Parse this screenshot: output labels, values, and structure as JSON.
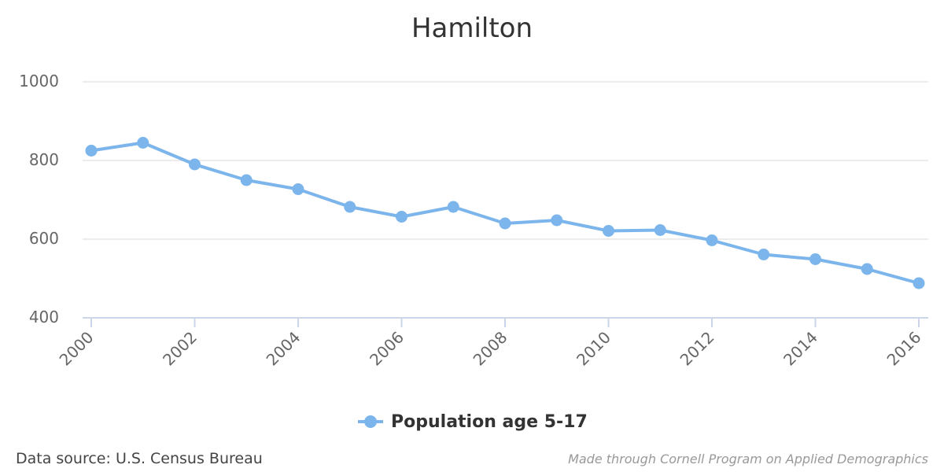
{
  "chart_data": {
    "type": "line",
    "title": "Hamilton",
    "xlabel": "",
    "ylabel": "",
    "x": [
      2000,
      2001,
      2002,
      2003,
      2004,
      2005,
      2006,
      2007,
      2008,
      2009,
      2010,
      2011,
      2012,
      2013,
      2014,
      2015,
      2016
    ],
    "series": [
      {
        "name": "Population age 5-17",
        "values": [
          825,
          845,
          790,
          750,
          727,
          682,
          657,
          682,
          640,
          648,
          621,
          623,
          597,
          561,
          549,
          524,
          488
        ]
      }
    ],
    "ylim": [
      400,
      1000
    ],
    "yticks": [
      "400",
      "600",
      "800",
      "1000"
    ],
    "xticks": [
      "2000",
      "2002",
      "2004",
      "2006",
      "2008",
      "2010",
      "2012",
      "2014",
      "2016"
    ],
    "grid": true,
    "legend_position": "bottom-center",
    "colors": {
      "series": "#7cb5ec",
      "grid": "#e6e6e6",
      "axis": "#ccd6eb"
    }
  },
  "footer": {
    "source": "Data source: U.S. Census Bureau",
    "credit": "Made through Cornell Program on Applied Demographics"
  }
}
